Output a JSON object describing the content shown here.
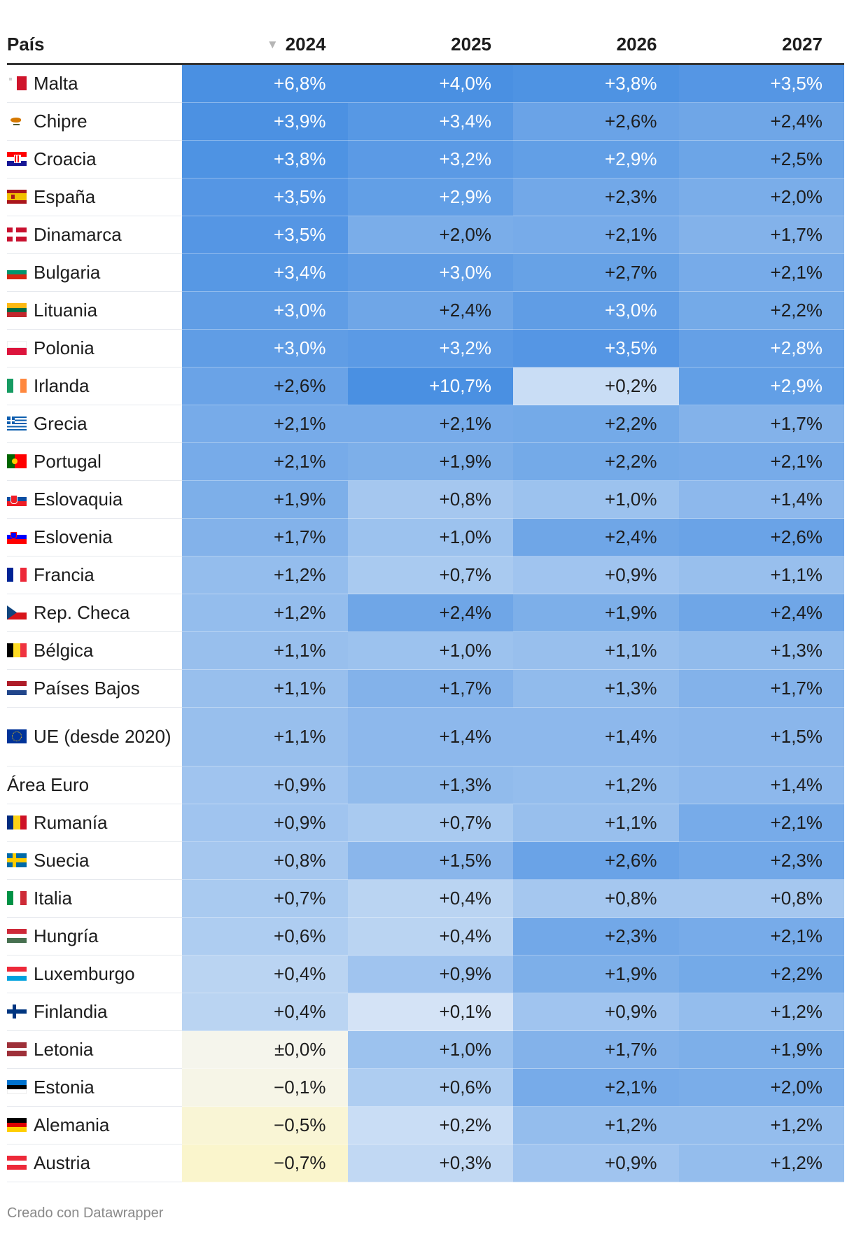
{
  "table": {
    "headers": [
      "País",
      "2024",
      "2025",
      "2026",
      "2027"
    ],
    "sort_indicator": "▼",
    "rows": [
      {
        "country": "Malta",
        "flag": "malta-flag",
        "values": [
          "+6,8%",
          "+4,0%",
          "+3,8%",
          "+3,5%"
        ],
        "nums": [
          6.8,
          4.0,
          3.8,
          3.5
        ]
      },
      {
        "country": "Chipre",
        "flag": "cyprus-flag",
        "values": [
          "+3,9%",
          "+3,4%",
          "+2,6%",
          "+2,4%"
        ],
        "nums": [
          3.9,
          3.4,
          2.6,
          2.4
        ]
      },
      {
        "country": "Croacia",
        "flag": "croatia-flag",
        "values": [
          "+3,8%",
          "+3,2%",
          "+2,9%",
          "+2,5%"
        ],
        "nums": [
          3.8,
          3.2,
          2.9,
          2.5
        ]
      },
      {
        "country": "España",
        "flag": "spain-flag",
        "values": [
          "+3,5%",
          "+2,9%",
          "+2,3%",
          "+2,0%"
        ],
        "nums": [
          3.5,
          2.9,
          2.3,
          2.0
        ]
      },
      {
        "country": "Dinamarca",
        "flag": "denmark-flag",
        "values": [
          "+3,5%",
          "+2,0%",
          "+2,1%",
          "+1,7%"
        ],
        "nums": [
          3.5,
          2.0,
          2.1,
          1.7
        ]
      },
      {
        "country": "Bulgaria",
        "flag": "bulgaria-flag",
        "values": [
          "+3,4%",
          "+3,0%",
          "+2,7%",
          "+2,1%"
        ],
        "nums": [
          3.4,
          3.0,
          2.7,
          2.1
        ]
      },
      {
        "country": "Lituania",
        "flag": "lithuania-flag",
        "values": [
          "+3,0%",
          "+2,4%",
          "+3,0%",
          "+2,2%"
        ],
        "nums": [
          3.0,
          2.4,
          3.0,
          2.2
        ]
      },
      {
        "country": "Polonia",
        "flag": "poland-flag",
        "values": [
          "+3,0%",
          "+3,2%",
          "+3,5%",
          "+2,8%"
        ],
        "nums": [
          3.0,
          3.2,
          3.5,
          2.8
        ]
      },
      {
        "country": "Irlanda",
        "flag": "ireland-flag",
        "values": [
          "+2,6%",
          "+10,7%",
          "+0,2%",
          "+2,9%"
        ],
        "nums": [
          2.6,
          10.7,
          0.2,
          2.9
        ]
      },
      {
        "country": "Grecia",
        "flag": "greece-flag",
        "values": [
          "+2,1%",
          "+2,1%",
          "+2,2%",
          "+1,7%"
        ],
        "nums": [
          2.1,
          2.1,
          2.2,
          1.7
        ]
      },
      {
        "country": "Portugal",
        "flag": "portugal-flag",
        "values": [
          "+2,1%",
          "+1,9%",
          "+2,2%",
          "+2,1%"
        ],
        "nums": [
          2.1,
          1.9,
          2.2,
          2.1
        ]
      },
      {
        "country": "Eslovaquia",
        "flag": "slovakia-flag",
        "values": [
          "+1,9%",
          "+0,8%",
          "+1,0%",
          "+1,4%"
        ],
        "nums": [
          1.9,
          0.8,
          1.0,
          1.4
        ]
      },
      {
        "country": "Eslovenia",
        "flag": "slovenia-flag",
        "values": [
          "+1,7%",
          "+1,0%",
          "+2,4%",
          "+2,6%"
        ],
        "nums": [
          1.7,
          1.0,
          2.4,
          2.6
        ]
      },
      {
        "country": "Francia",
        "flag": "france-flag",
        "values": [
          "+1,2%",
          "+0,7%",
          "+0,9%",
          "+1,1%"
        ],
        "nums": [
          1.2,
          0.7,
          0.9,
          1.1
        ]
      },
      {
        "country": "Rep. Checa",
        "flag": "czechia-flag",
        "values": [
          "+1,2%",
          "+2,4%",
          "+1,9%",
          "+2,4%"
        ],
        "nums": [
          1.2,
          2.4,
          1.9,
          2.4
        ]
      },
      {
        "country": "Bélgica",
        "flag": "belgium-flag",
        "values": [
          "+1,1%",
          "+1,0%",
          "+1,1%",
          "+1,3%"
        ],
        "nums": [
          1.1,
          1.0,
          1.1,
          1.3
        ]
      },
      {
        "country": "Países Bajos",
        "flag": "netherlands-flag",
        "values": [
          "+1,1%",
          "+1,7%",
          "+1,3%",
          "+1,7%"
        ],
        "nums": [
          1.1,
          1.7,
          1.3,
          1.7
        ]
      },
      {
        "country": "UE (desde 2020)",
        "flag": "eu-flag",
        "values": [
          "+1,1%",
          "+1,4%",
          "+1,4%",
          "+1,5%"
        ],
        "nums": [
          1.1,
          1.4,
          1.4,
          1.5
        ]
      },
      {
        "country": "Área Euro",
        "flag": "",
        "values": [
          "+0,9%",
          "+1,3%",
          "+1,2%",
          "+1,4%"
        ],
        "nums": [
          0.9,
          1.3,
          1.2,
          1.4
        ]
      },
      {
        "country": "Rumanía",
        "flag": "romania-flag",
        "values": [
          "+0,9%",
          "+0,7%",
          "+1,1%",
          "+2,1%"
        ],
        "nums": [
          0.9,
          0.7,
          1.1,
          2.1
        ]
      },
      {
        "country": "Suecia",
        "flag": "sweden-flag",
        "values": [
          "+0,8%",
          "+1,5%",
          "+2,6%",
          "+2,3%"
        ],
        "nums": [
          0.8,
          1.5,
          2.6,
          2.3
        ]
      },
      {
        "country": "Italia",
        "flag": "italy-flag",
        "values": [
          "+0,7%",
          "+0,4%",
          "+0,8%",
          "+0,8%"
        ],
        "nums": [
          0.7,
          0.4,
          0.8,
          0.8
        ]
      },
      {
        "country": "Hungría",
        "flag": "hungary-flag",
        "values": [
          "+0,6%",
          "+0,4%",
          "+2,3%",
          "+2,1%"
        ],
        "nums": [
          0.6,
          0.4,
          2.3,
          2.1
        ]
      },
      {
        "country": "Luxemburgo",
        "flag": "luxembourg-flag",
        "values": [
          "+0,4%",
          "+0,9%",
          "+1,9%",
          "+2,2%"
        ],
        "nums": [
          0.4,
          0.9,
          1.9,
          2.2
        ]
      },
      {
        "country": "Finlandia",
        "flag": "finland-flag",
        "values": [
          "+0,4%",
          "+0,1%",
          "+0,9%",
          "+1,2%"
        ],
        "nums": [
          0.4,
          0.1,
          0.9,
          1.2
        ]
      },
      {
        "country": "Letonia",
        "flag": "latvia-flag",
        "values": [
          "±0,0%",
          "+1,0%",
          "+1,7%",
          "+1,9%"
        ],
        "nums": [
          0.0,
          1.0,
          1.7,
          1.9
        ]
      },
      {
        "country": "Estonia",
        "flag": "estonia-flag",
        "values": [
          "−0,1%",
          "+0,6%",
          "+2,1%",
          "+2,0%"
        ],
        "nums": [
          -0.1,
          0.6,
          2.1,
          2.0
        ]
      },
      {
        "country": "Alemania",
        "flag": "germany-flag",
        "values": [
          "−0,5%",
          "+0,2%",
          "+1,2%",
          "+1,2%"
        ],
        "nums": [
          -0.5,
          0.2,
          1.2,
          1.2
        ]
      },
      {
        "country": "Austria",
        "flag": "austria-flag",
        "values": [
          "−0,7%",
          "+0,3%",
          "+0,9%",
          "+1,2%"
        ],
        "nums": [
          -0.7,
          0.3,
          0.9,
          1.2
        ]
      }
    ]
  },
  "colors": {
    "scale_high": "#4a90e2",
    "scale_low": "#eef3fa",
    "scale_zero": "#f5f5ec",
    "scale_negative": "#faf5cc"
  },
  "footer": "Creado con Datawrapper"
}
